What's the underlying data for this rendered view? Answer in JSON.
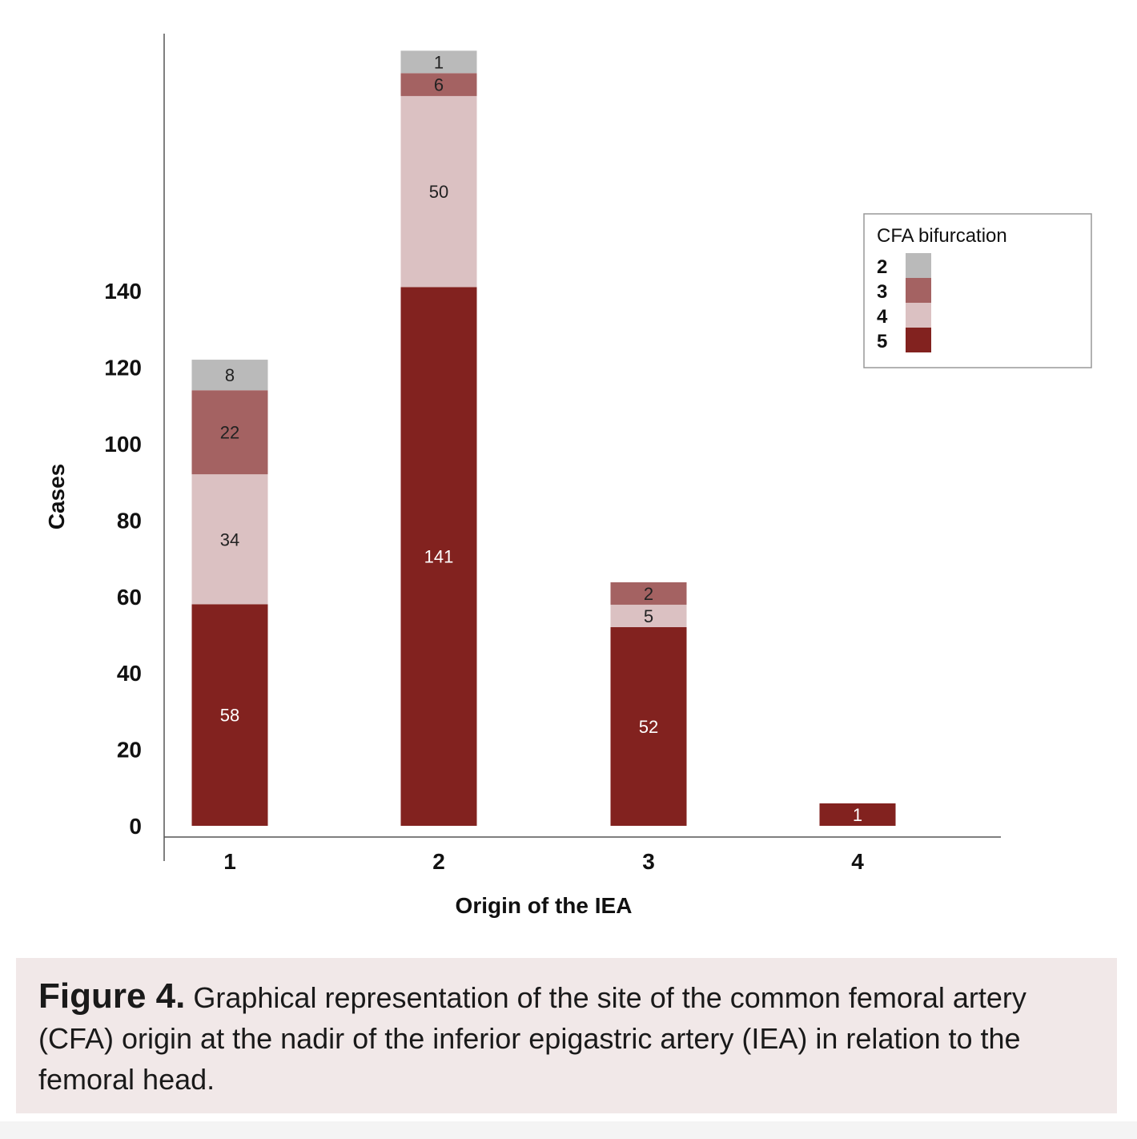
{
  "chart_data": {
    "type": "bar",
    "stacked": true,
    "categories": [
      "1",
      "2",
      "3",
      "4"
    ],
    "xlabel": "Origin of the IEA",
    "ylabel": "Cases",
    "yticks": [
      0,
      20,
      40,
      60,
      80,
      100,
      120,
      140
    ],
    "ylim": [
      0,
      200
    ],
    "grid": false,
    "legend": {
      "title": "CFA bifurcation",
      "placement": "right"
    },
    "series": [
      {
        "name": "5",
        "color": "#82221f",
        "values": [
          58,
          141,
          52,
          1
        ]
      },
      {
        "name": "4",
        "color": "#dbc1c2",
        "values": [
          34,
          50,
          5,
          null
        ]
      },
      {
        "name": "3",
        "color": "#a46262",
        "values": [
          22,
          6,
          2,
          null
        ]
      },
      {
        "name": "2",
        "color": "#bababa",
        "values": [
          8,
          1,
          null,
          null
        ]
      }
    ],
    "legend_order": [
      "2",
      "3",
      "4",
      "5"
    ]
  },
  "caption": {
    "label": "Figure 4.",
    "text": "Graphical representation of the site of the common femoral artery (CFA) origin at the nadir of the inferior epigastric artery (IEA) in relation to the femoral head."
  }
}
